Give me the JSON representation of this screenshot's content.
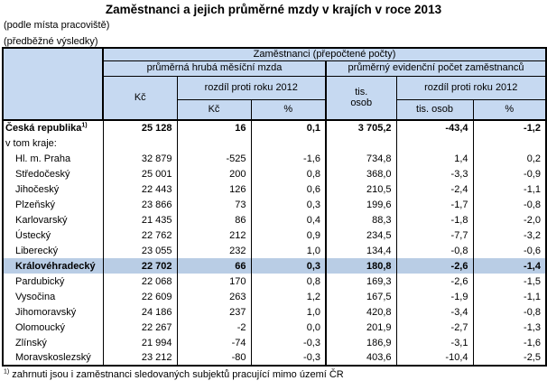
{
  "title": "Zaměstnanci a jejich průměrné mzdy v krajích v roce 2013",
  "subtitles": [
    "(podle místa pracoviště)",
    "(předběžné výsledky)"
  ],
  "colors": {
    "header_bg": "#c6d9f1",
    "highlight_bg": "#b9cde5",
    "border": "#000000"
  },
  "table": {
    "header": {
      "group_top": "Zaměstnanci (přepočtené počty)",
      "group_wage": "průměrná hrubá měsíční mzda",
      "group_employees": "průměrný evidenční počet zaměstnanců",
      "wage_unit": "Kč",
      "wage_diff": "rozdíl proti roku 2012",
      "wage_diff_kc": "Kč",
      "wage_diff_pct": "%",
      "emp_unit_line1": "tis.",
      "emp_unit_line2": "osob",
      "emp_diff": "rozdíl proti roku 2012",
      "emp_diff_tis": "tis. osob",
      "emp_diff_pct": "%"
    },
    "rows": [
      {
        "label": "Česká republika",
        "sup": "1)",
        "bold": true,
        "indent": false,
        "highlight": false,
        "values": [
          "25 128",
          "16",
          "0,1",
          "3 705,2",
          "-43,4",
          "-1,2"
        ]
      },
      {
        "label": "v tom kraje:",
        "bold": false,
        "indent": false,
        "highlight": false,
        "values": [
          "",
          "",
          "",
          "",
          "",
          ""
        ]
      },
      {
        "label": "Hl. m. Praha",
        "bold": false,
        "indent": true,
        "highlight": false,
        "values": [
          "32 879",
          "-525",
          "-1,6",
          "734,8",
          "1,4",
          "0,2"
        ]
      },
      {
        "label": "Středočeský",
        "bold": false,
        "indent": true,
        "highlight": false,
        "values": [
          "25 001",
          "200",
          "0,8",
          "368,0",
          "-3,3",
          "-0,9"
        ]
      },
      {
        "label": "Jihočeský",
        "bold": false,
        "indent": true,
        "highlight": false,
        "values": [
          "22 443",
          "126",
          "0,6",
          "210,5",
          "-2,4",
          "-1,1"
        ]
      },
      {
        "label": "Plzeňský",
        "bold": false,
        "indent": true,
        "highlight": false,
        "values": [
          "23 866",
          "73",
          "0,3",
          "199,6",
          "-1,7",
          "-0,8"
        ]
      },
      {
        "label": "Karlovarský",
        "bold": false,
        "indent": true,
        "highlight": false,
        "values": [
          "21 435",
          "86",
          "0,4",
          "88,3",
          "-1,8",
          "-2,0"
        ]
      },
      {
        "label": "Ústecký",
        "bold": false,
        "indent": true,
        "highlight": false,
        "values": [
          "22 762",
          "212",
          "0,9",
          "234,5",
          "-7,7",
          "-3,2"
        ]
      },
      {
        "label": "Liberecký",
        "bold": false,
        "indent": true,
        "highlight": false,
        "values": [
          "23 055",
          "232",
          "1,0",
          "134,4",
          "-0,8",
          "-0,6"
        ]
      },
      {
        "label": "Královéhradecký",
        "bold": true,
        "indent": true,
        "highlight": true,
        "values": [
          "22 702",
          "66",
          "0,3",
          "180,8",
          "-2,6",
          "-1,4"
        ]
      },
      {
        "label": "Pardubický",
        "bold": false,
        "indent": true,
        "highlight": false,
        "values": [
          "22 068",
          "170",
          "0,8",
          "169,3",
          "-2,6",
          "-1,5"
        ]
      },
      {
        "label": "Vysočina",
        "bold": false,
        "indent": true,
        "highlight": false,
        "values": [
          "22 609",
          "263",
          "1,2",
          "167,5",
          "-1,9",
          "-1,1"
        ]
      },
      {
        "label": "Jihomoravský",
        "bold": false,
        "indent": true,
        "highlight": false,
        "values": [
          "24 186",
          "237",
          "1,0",
          "420,8",
          "-3,4",
          "-0,8"
        ]
      },
      {
        "label": "Olomoucký",
        "bold": false,
        "indent": true,
        "highlight": false,
        "values": [
          "22 267",
          "-2",
          "0,0",
          "201,9",
          "-2,7",
          "-1,3"
        ]
      },
      {
        "label": "Zlínský",
        "bold": false,
        "indent": true,
        "highlight": false,
        "values": [
          "21 994",
          "-74",
          "-0,3",
          "186,9",
          "-3,1",
          "-1,6"
        ]
      },
      {
        "label": "Moravskoslezský",
        "bold": false,
        "indent": true,
        "highlight": false,
        "values": [
          "23 212",
          "-80",
          "-0,3",
          "403,6",
          "-10,4",
          "-2,5"
        ]
      }
    ]
  },
  "footnote": {
    "marker": "1)",
    "text": " zahrnuti jsou i zaměstnanci sledovaných subjektů pracující mimo území ČR"
  }
}
